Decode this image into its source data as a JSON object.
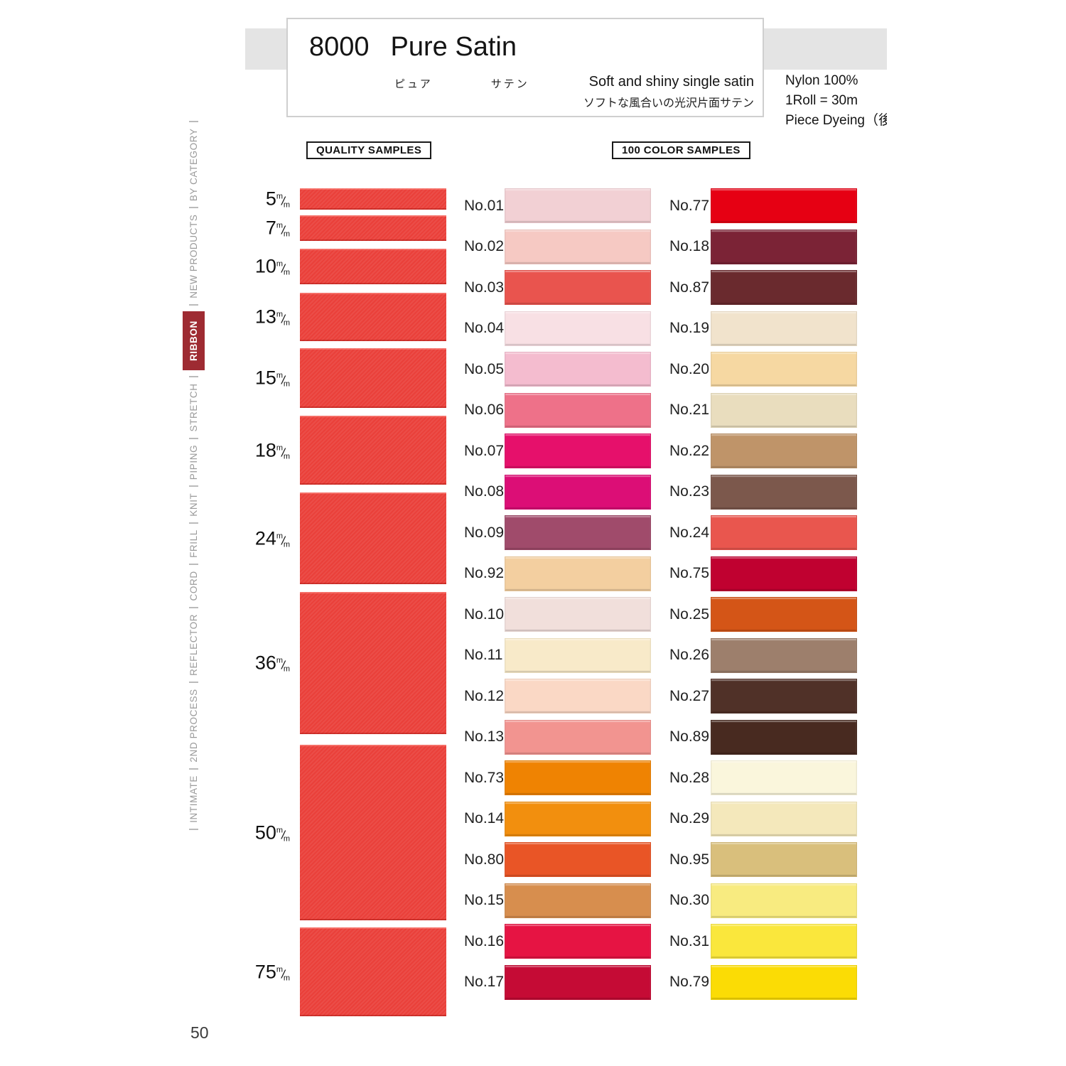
{
  "page": {
    "number": "50"
  },
  "header": {
    "code": "8000",
    "name": "Pure Satin",
    "ruby_pure": "ピュア",
    "ruby_satin": "サテン",
    "tagline_en": "Soft and shiny single satin",
    "tagline_ja": "ソフトな風合いの光沢片面サテン",
    "spec_material": "Nylon 100%",
    "spec_roll": "1Roll = 30m",
    "spec_dyeing": "Piece Dyeing（後染め"
  },
  "sidebar": {
    "active_item": "RIBBON",
    "active_bg": "#9e2b32",
    "items_top_to_bottom": [
      "BY CATEGORY",
      "NEW PRODUCTS",
      "RIBBON",
      "STRETCH",
      "PIPING",
      "KNIT",
      "FRILL",
      "CORD",
      "REFLECTOR",
      "2ND PROCESS",
      "INTIMATE"
    ]
  },
  "quality": {
    "title": "QUALITY SAMPLES",
    "unit": "m/m",
    "ribbon_color": "#ea403a",
    "sizes_mm": [
      "5",
      "7",
      "10",
      "13",
      "15",
      "18",
      "24",
      "36",
      "50",
      "75"
    ]
  },
  "colors": {
    "title": "100 COLOR SAMPLES",
    "column1": [
      {
        "no": "No.01",
        "hex": "#f2d0d4"
      },
      {
        "no": "No.02",
        "hex": "#f6c9c3"
      },
      {
        "no": "No.03",
        "hex": "#e9544e"
      },
      {
        "no": "No.04",
        "hex": "#f8e0e4"
      },
      {
        "no": "No.05",
        "hex": "#f4bccf"
      },
      {
        "no": "No.06",
        "hex": "#ee7189"
      },
      {
        "no": "No.07",
        "hex": "#e6106b"
      },
      {
        "no": "No.08",
        "hex": "#dc0e76"
      },
      {
        "no": "No.09",
        "hex": "#a04b6b"
      },
      {
        "no": "No.92",
        "hex": "#f3cfa0"
      },
      {
        "no": "No.10",
        "hex": "#f1dfdb"
      },
      {
        "no": "No.11",
        "hex": "#f8eac9"
      },
      {
        "no": "No.12",
        "hex": "#fad8c5"
      },
      {
        "no": "No.13",
        "hex": "#f29490"
      },
      {
        "no": "No.73",
        "hex": "#ef8302"
      },
      {
        "no": "No.14",
        "hex": "#f28f0e"
      },
      {
        "no": "No.80",
        "hex": "#e95526"
      },
      {
        "no": "No.15",
        "hex": "#d78e4e"
      },
      {
        "no": "No.16",
        "hex": "#e61443"
      },
      {
        "no": "No.17",
        "hex": "#c50b35"
      }
    ],
    "column2": [
      {
        "no": "No.77",
        "hex": "#e60013"
      },
      {
        "no": "No.18",
        "hex": "#7b2336"
      },
      {
        "no": "No.87",
        "hex": "#6a2a2e"
      },
      {
        "no": "No.19",
        "hex": "#f1e3cc"
      },
      {
        "no": "No.20",
        "hex": "#f6d8a2"
      },
      {
        "no": "No.21",
        "hex": "#e9ddbe"
      },
      {
        "no": "No.22",
        "hex": "#bf9469"
      },
      {
        "no": "No.23",
        "hex": "#7c584c"
      },
      {
        "no": "No.24",
        "hex": "#e9564e"
      },
      {
        "no": "No.75",
        "hex": "#c00130"
      },
      {
        "no": "No.25",
        "hex": "#d45517"
      },
      {
        "no": "No.26",
        "hex": "#9d7f6c"
      },
      {
        "no": "No.27",
        "hex": "#503128"
      },
      {
        "no": "No.89",
        "hex": "#482a20"
      },
      {
        "no": "No.28",
        "hex": "#faf6dc"
      },
      {
        "no": "No.29",
        "hex": "#f4e8bb"
      },
      {
        "no": "No.95",
        "hex": "#d9bf7c"
      },
      {
        "no": "No.30",
        "hex": "#f8eb80"
      },
      {
        "no": "No.31",
        "hex": "#fae73c"
      },
      {
        "no": "No.79",
        "hex": "#fbdc05"
      }
    ]
  }
}
